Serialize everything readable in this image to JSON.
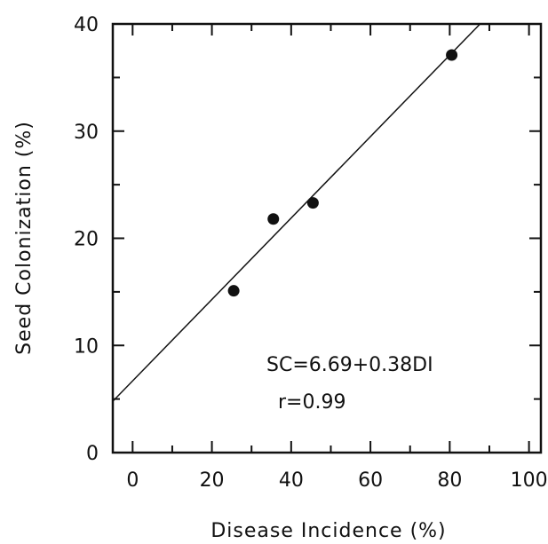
{
  "chart_data": {
    "type": "scatter",
    "xlabel": "Disease Incidence (%)",
    "ylabel": "Seed Colonization (%)",
    "xlim": [
      -5,
      103
    ],
    "ylim": [
      0,
      40
    ],
    "x_ticks": [
      0,
      20,
      40,
      60,
      80,
      100
    ],
    "y_ticks": [
      0,
      10,
      20,
      30,
      40
    ],
    "grid": false,
    "points": [
      {
        "x": 25.5,
        "y": 15.1
      },
      {
        "x": 35.5,
        "y": 21.8
      },
      {
        "x": 45.5,
        "y": 23.3
      },
      {
        "x": 80.5,
        "y": 37.1
      }
    ],
    "fit_line": {
      "intercept": 6.69,
      "slope": 0.38
    },
    "annotations": [
      "SC=6.69+0.38DI",
      "r=0.99"
    ]
  }
}
